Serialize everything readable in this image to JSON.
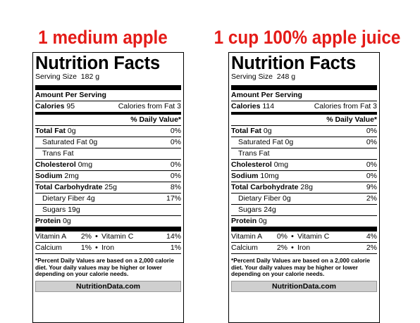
{
  "colors": {
    "heading_red": "#e41b17",
    "footer_box": "#cfcfcf"
  },
  "panels": [
    {
      "heading": "1 medium apple",
      "title": "Nutrition Facts",
      "serving_label": "Serving Size",
      "serving_value": "182 g",
      "amount_per_serving": "Amount Per Serving",
      "calories_label": "Calories",
      "calories_value": "95",
      "calories_fat_label": "Calories from Fat",
      "calories_fat_value": "3",
      "daily_value_header": "% Daily Value*",
      "total_fat_label": "Total Fat",
      "total_fat_amount": "0g",
      "total_fat_dv": "0%",
      "sat_fat_label": "Saturated Fat",
      "sat_fat_amount": "0g",
      "sat_fat_dv": "0%",
      "trans_fat_label": "Trans Fat",
      "cholesterol_label": "Cholesterol",
      "cholesterol_amount": "0mg",
      "cholesterol_dv": "0%",
      "sodium_label": "Sodium",
      "sodium_amount": "2mg",
      "sodium_dv": "0%",
      "carb_label": "Total Carbohydrate",
      "carb_amount": "25g",
      "carb_dv": "8%",
      "fiber_label": "Dietary Fiber",
      "fiber_amount": "4g",
      "fiber_dv": "17%",
      "sugars_label": "Sugars",
      "sugars_amount": "19g",
      "protein_label": "Protein",
      "protein_amount": "0g",
      "vitamin_a_label": "Vitamin A",
      "vitamin_a_dv": "2%",
      "vitamin_c_label": "Vitamin C",
      "vitamin_c_dv": "14%",
      "calcium_label": "Calcium",
      "calcium_dv": "1%",
      "iron_label": "Iron",
      "iron_dv": "1%",
      "bullet": "•",
      "footnote": "*Percent Daily Values are based on a 2,000 calorie diet. Your daily values may be higher or lower depending on your calorie needs.",
      "source": "NutritionData.com"
    },
    {
      "heading": "1 cup 100% apple juice",
      "title": "Nutrition Facts",
      "serving_label": "Serving Size",
      "serving_value": "248 g",
      "amount_per_serving": "Amount Per Serving",
      "calories_label": "Calories",
      "calories_value": "114",
      "calories_fat_label": "Calories from Fat",
      "calories_fat_value": "3",
      "daily_value_header": "% Daily Value*",
      "total_fat_label": "Total Fat",
      "total_fat_amount": "0g",
      "total_fat_dv": "0%",
      "sat_fat_label": "Saturated Fat",
      "sat_fat_amount": "0g",
      "sat_fat_dv": "0%",
      "trans_fat_label": "Trans Fat",
      "cholesterol_label": "Cholesterol",
      "cholesterol_amount": "0mg",
      "cholesterol_dv": "0%",
      "sodium_label": "Sodium",
      "sodium_amount": "10mg",
      "sodium_dv": "0%",
      "carb_label": "Total Carbohydrate",
      "carb_amount": "28g",
      "carb_dv": "9%",
      "fiber_label": "Dietary Fiber",
      "fiber_amount": "0g",
      "fiber_dv": "2%",
      "sugars_label": "Sugars",
      "sugars_amount": "24g",
      "protein_label": "Protein",
      "protein_amount": "0g",
      "vitamin_a_label": "Vitamin A",
      "vitamin_a_dv": "0%",
      "vitamin_c_label": "Vitamin C",
      "vitamin_c_dv": "4%",
      "calcium_label": "Calcium",
      "calcium_dv": "2%",
      "iron_label": "Iron",
      "iron_dv": "2%",
      "bullet": "•",
      "footnote": "*Percent Daily Values are based on a 2,000 calorie diet. Your daily values may be higher or lower depending on your calorie needs.",
      "source": "NutritionData.com"
    }
  ]
}
